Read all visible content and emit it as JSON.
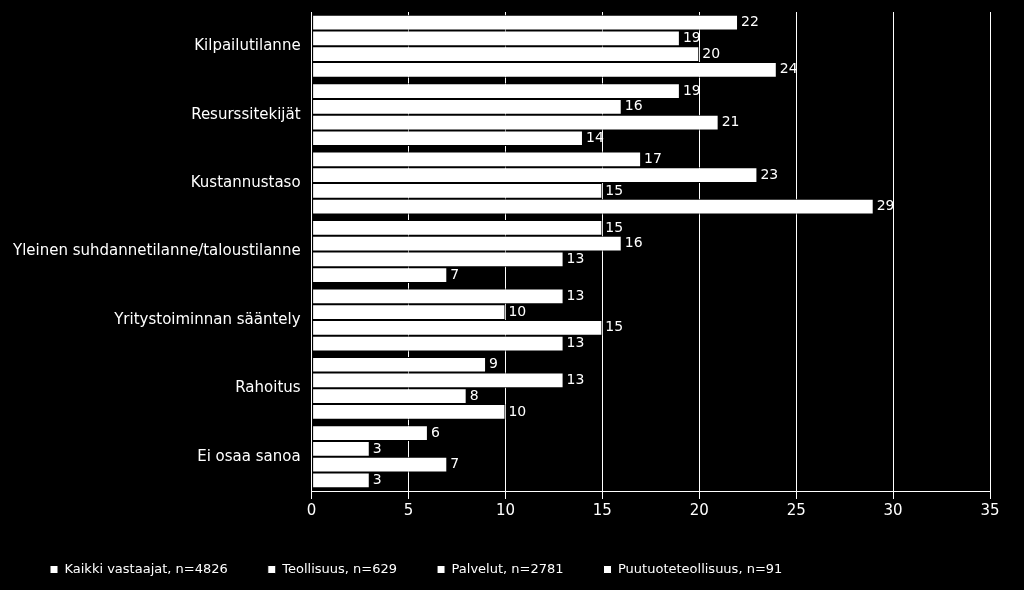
{
  "chart_data": {
    "type": "bar",
    "orientation": "horizontal",
    "categories": [
      "Kilpailutilanne",
      "Resurssitekijät",
      "Kustannustaso",
      "Yleinen suhdannetilanne/taloustilanne",
      "Yritystoiminnan sääntely",
      "Rahoitus",
      "Ei osaa sanoa"
    ],
    "series": [
      {
        "name": "Kaikki vastaajat, n=4826",
        "color": "#ffffff",
        "values": [
          22,
          19,
          17,
          15,
          13,
          9,
          6
        ]
      },
      {
        "name": "Teollisuus, n=629",
        "color": "#ffffff",
        "values": [
          19,
          16,
          23,
          16,
          10,
          13,
          3
        ]
      },
      {
        "name": "Palvelut, n=2781",
        "color": "#ffffff",
        "values": [
          20,
          21,
          15,
          13,
          15,
          8,
          7
        ]
      },
      {
        "name": "Puutuoteteollisuus, n=91",
        "color": "#ffffff",
        "values": [
          24,
          14,
          29,
          7,
          13,
          10,
          3
        ]
      }
    ],
    "xlim": [
      0,
      35
    ],
    "xticks": [
      0,
      5,
      10,
      15,
      20,
      25,
      30,
      35
    ],
    "grid": true,
    "legend": "bottom",
    "data_labels": true
  }
}
